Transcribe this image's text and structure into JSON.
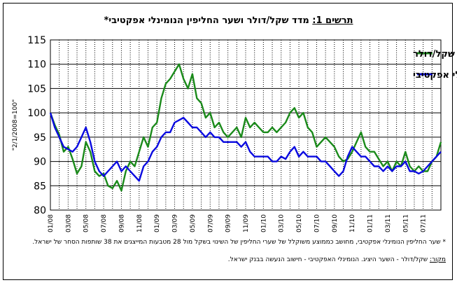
{
  "title": {
    "prefix": "תרשים 1:",
    "text": "מדד שקל/דולר ושער החליפין הנומינלי אפקטיבי*"
  },
  "notes": {
    "definition": "* שער החליפין הנומינלי אפקטיבי, מחושב כממוצע משוקלל של שערי החליפין של השינוי בשקל מול 28 מטבעות המייצגים את 38 שותפות הסחר של ישראל.",
    "source_label": "מקור:",
    "source_text": " שקל/דולר - השער היציג. הנומינלי האפקטיבי - חישוב הנעשה בבנק ישראל."
  },
  "colors": {
    "usd": "#1a8a1a",
    "eff": "#0a0ae0"
  },
  "chart_data": {
    "type": "line",
    "ylabel": "2/1/2008=100",
    "ylim": [
      80,
      115
    ],
    "yticks": [
      80,
      85,
      90,
      95,
      100,
      105,
      110,
      115
    ],
    "x_tick_labels": [
      "01/08",
      "03/08",
      "05/08",
      "07/08",
      "09/08",
      "11/08",
      "01/09",
      "03/09",
      "05/09",
      "07/09",
      "09/09",
      "11/09",
      "01/10",
      "03/10",
      "05/10",
      "07/10",
      "09/10",
      "11/10",
      "01/11",
      "03/11",
      "05/11",
      "07/11"
    ],
    "x_range_months": [
      0,
      44
    ],
    "grid": {
      "horizontal": true,
      "vertical": "dotted"
    },
    "legend_position": "top-right",
    "series": [
      {
        "name": "שקל/דולר",
        "color": "#1a8a1a",
        "x": [
          0,
          0.5,
          1,
          1.5,
          2,
          2.5,
          3,
          3.5,
          4,
          4.5,
          5,
          5.5,
          6,
          6.5,
          7,
          7.5,
          8,
          8.5,
          9,
          9.5,
          10,
          10.5,
          11,
          11.5,
          12,
          12.5,
          13,
          13.5,
          14,
          14.5,
          15,
          15.5,
          16,
          16.5,
          17,
          17.5,
          18,
          18.5,
          19,
          19.5,
          20,
          20.5,
          21,
          21.5,
          22,
          22.5,
          23,
          23.5,
          24,
          24.5,
          25,
          25.5,
          26,
          26.5,
          27,
          27.5,
          28,
          28.5,
          29,
          29.5,
          30,
          30.5,
          31,
          31.5,
          32,
          32.5,
          33,
          33.5,
          34,
          34.5,
          35,
          35.5,
          36,
          36.5,
          37,
          37.5,
          38,
          38.5,
          39,
          39.5,
          40,
          40.5,
          41,
          41.5,
          42,
          42.5,
          43,
          43.5,
          44
        ],
        "values": [
          100,
          97.5,
          95.5,
          92,
          93,
          90.5,
          87.5,
          89,
          94,
          92,
          88,
          87,
          87.5,
          85,
          84.5,
          86,
          84,
          88,
          90,
          89,
          92,
          95,
          93,
          97,
          98,
          103,
          106,
          107,
          108.5,
          110,
          107,
          105,
          108,
          103,
          102,
          99,
          100,
          97,
          98,
          96,
          95,
          96,
          97,
          95,
          99,
          97,
          98,
          97,
          96,
          96,
          97,
          96,
          97,
          98,
          100,
          101,
          99,
          100,
          97,
          96,
          93,
          94,
          95,
          94,
          93,
          91,
          90,
          90.5,
          92,
          94,
          96,
          93,
          92,
          92,
          90.5,
          89,
          90,
          88,
          90,
          89,
          92,
          89,
          88,
          89,
          88,
          88,
          90,
          91,
          94
        ]
      },
      {
        "name": "נומינלי אפקטיבי",
        "color": "#0a0ae0",
        "x": [
          0,
          0.5,
          1,
          1.5,
          2,
          2.5,
          3,
          3.5,
          4,
          4.5,
          5,
          5.5,
          6,
          6.5,
          7,
          7.5,
          8,
          8.5,
          9,
          9.5,
          10,
          10.5,
          11,
          11.5,
          12,
          12.5,
          13,
          13.5,
          14,
          14.5,
          15,
          15.5,
          16,
          16.5,
          17,
          17.5,
          18,
          18.5,
          19,
          19.5,
          20,
          20.5,
          21,
          21.5,
          22,
          22.5,
          23,
          23.5,
          24,
          24.5,
          25,
          25.5,
          26,
          26.5,
          27,
          27.5,
          28,
          28.5,
          29,
          29.5,
          30,
          30.5,
          31,
          31.5,
          32,
          32.5,
          33,
          33.5,
          34,
          34.5,
          35,
          35.5,
          36,
          36.5,
          37,
          37.5,
          38,
          38.5,
          39,
          39.5,
          40,
          40.5,
          41,
          41.5,
          42,
          42.5,
          43,
          43.5,
          44
        ],
        "values": [
          100,
          97,
          95,
          93,
          92.5,
          92,
          93,
          95,
          97,
          94,
          90,
          88,
          87,
          88,
          89,
          90,
          88,
          89,
          88,
          87,
          86,
          89,
          90,
          92,
          93,
          95,
          96,
          96,
          98,
          98.5,
          99,
          98,
          97,
          97,
          96,
          95,
          96,
          95,
          95,
          94,
          94,
          94,
          94,
          93,
          94,
          92,
          91,
          91,
          91,
          91,
          90,
          90,
          91,
          90.5,
          92,
          93,
          91,
          92,
          91,
          91,
          91,
          90,
          90,
          89,
          88,
          87,
          88,
          91,
          93,
          92,
          91,
          91,
          90,
          89,
          89,
          88,
          89,
          88,
          89,
          89,
          90,
          88,
          88,
          87.5,
          88,
          89,
          90,
          91,
          92
        ]
      }
    ]
  }
}
